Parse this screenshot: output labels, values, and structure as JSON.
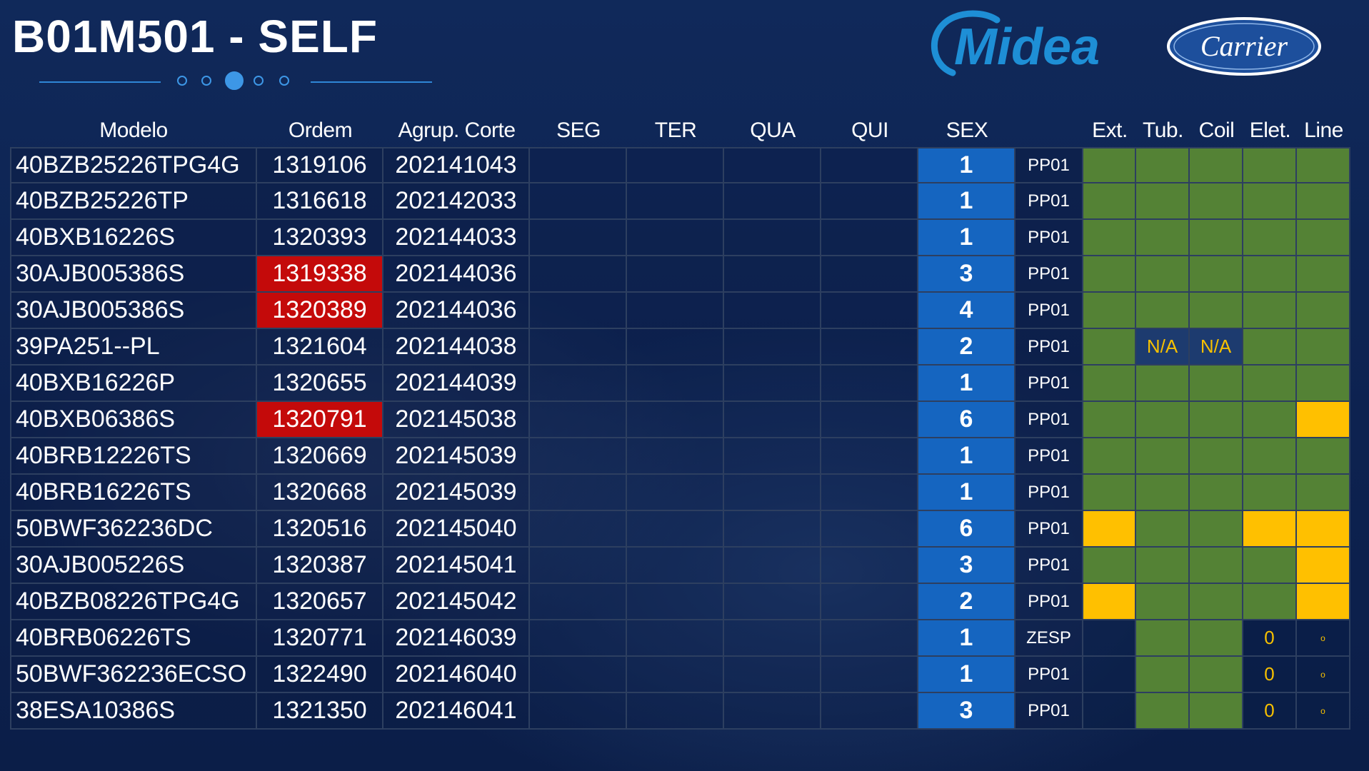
{
  "header": {
    "title": "B01M501 - SELF",
    "pager": {
      "count": 5,
      "active_index": 2
    }
  },
  "logos": {
    "midea": {
      "text": "Midea",
      "color": "#1e8fd6"
    },
    "carrier": {
      "text": "Carrier",
      "color": "#1d4f9c"
    }
  },
  "table": {
    "headers": [
      "Modelo",
      "Ordem",
      "Agrup. Corte",
      "SEG",
      "TER",
      "QUA",
      "QUI",
      "SEX",
      "",
      "Ext.",
      "Tub.",
      "Coil",
      "Elet.",
      "Line"
    ],
    "rows": [
      {
        "modelo": "40BZB25226TPG4G",
        "ordem": "1319106",
        "ordem_flag": "normal",
        "agrup": "202141043",
        "sex": "1",
        "ppo": "PP01",
        "status": [
          {
            "color": "green",
            "text": ""
          },
          {
            "color": "green",
            "text": ""
          },
          {
            "color": "green",
            "text": ""
          },
          {
            "color": "green",
            "text": ""
          },
          {
            "color": "green",
            "text": ""
          }
        ]
      },
      {
        "modelo": "40BZB25226TP",
        "ordem": "1316618",
        "ordem_flag": "normal",
        "agrup": "202142033",
        "sex": "1",
        "ppo": "PP01",
        "status": [
          {
            "color": "green",
            "text": ""
          },
          {
            "color": "green",
            "text": ""
          },
          {
            "color": "green",
            "text": ""
          },
          {
            "color": "green",
            "text": ""
          },
          {
            "color": "green",
            "text": ""
          }
        ]
      },
      {
        "modelo": "40BXB16226S",
        "ordem": "1320393",
        "ordem_flag": "normal",
        "agrup": "202144033",
        "sex": "1",
        "ppo": "PP01",
        "status": [
          {
            "color": "green",
            "text": ""
          },
          {
            "color": "green",
            "text": ""
          },
          {
            "color": "green",
            "text": ""
          },
          {
            "color": "green",
            "text": ""
          },
          {
            "color": "green",
            "text": ""
          }
        ]
      },
      {
        "modelo": "30AJB005386S",
        "ordem": "1319338",
        "ordem_flag": "red",
        "agrup": "202144036",
        "sex": "3",
        "ppo": "PP01",
        "status": [
          {
            "color": "green",
            "text": ""
          },
          {
            "color": "green",
            "text": ""
          },
          {
            "color": "green",
            "text": ""
          },
          {
            "color": "green",
            "text": ""
          },
          {
            "color": "green",
            "text": ""
          }
        ]
      },
      {
        "modelo": "30AJB005386S",
        "ordem": "1320389",
        "ordem_flag": "red",
        "agrup": "202144036",
        "sex": "4",
        "ppo": "PP01",
        "status": [
          {
            "color": "green",
            "text": ""
          },
          {
            "color": "green",
            "text": ""
          },
          {
            "color": "green",
            "text": ""
          },
          {
            "color": "green",
            "text": ""
          },
          {
            "color": "green",
            "text": ""
          }
        ]
      },
      {
        "modelo": "39PA251--PL",
        "ordem": "1321604",
        "ordem_flag": "normal",
        "agrup": "202144038",
        "sex": "2",
        "ppo": "PP01",
        "status": [
          {
            "color": "green",
            "text": ""
          },
          {
            "color": "blue",
            "text": "N/A"
          },
          {
            "color": "blue",
            "text": "N/A"
          },
          {
            "color": "green",
            "text": ""
          },
          {
            "color": "green",
            "text": ""
          }
        ]
      },
      {
        "modelo": "40BXB16226P",
        "ordem": "1320655",
        "ordem_flag": "normal",
        "agrup": "202144039",
        "sex": "1",
        "ppo": "PP01",
        "status": [
          {
            "color": "green",
            "text": ""
          },
          {
            "color": "green",
            "text": ""
          },
          {
            "color": "green",
            "text": ""
          },
          {
            "color": "green",
            "text": ""
          },
          {
            "color": "green",
            "text": ""
          }
        ]
      },
      {
        "modelo": "40BXB06386S",
        "ordem": "1320791",
        "ordem_flag": "red",
        "agrup": "202145038",
        "sex": "6",
        "ppo": "PP01",
        "status": [
          {
            "color": "green",
            "text": ""
          },
          {
            "color": "green",
            "text": ""
          },
          {
            "color": "green",
            "text": ""
          },
          {
            "color": "green",
            "text": ""
          },
          {
            "color": "yellow",
            "text": ""
          }
        ]
      },
      {
        "modelo": "40BRB12226TS",
        "ordem": "1320669",
        "ordem_flag": "normal",
        "agrup": "202145039",
        "sex": "1",
        "ppo": "PP01",
        "status": [
          {
            "color": "green",
            "text": ""
          },
          {
            "color": "green",
            "text": ""
          },
          {
            "color": "green",
            "text": ""
          },
          {
            "color": "green",
            "text": ""
          },
          {
            "color": "green",
            "text": ""
          }
        ]
      },
      {
        "modelo": "40BRB16226TS",
        "ordem": "1320668",
        "ordem_flag": "normal",
        "agrup": "202145039",
        "sex": "1",
        "ppo": "PP01",
        "status": [
          {
            "color": "green",
            "text": ""
          },
          {
            "color": "green",
            "text": ""
          },
          {
            "color": "green",
            "text": ""
          },
          {
            "color": "green",
            "text": ""
          },
          {
            "color": "green",
            "text": ""
          }
        ]
      },
      {
        "modelo": "50BWF362236DC",
        "ordem": "1320516",
        "ordem_flag": "normal",
        "agrup": "202145040",
        "sex": "6",
        "ppo": "PP01",
        "status": [
          {
            "color": "yellow",
            "text": ""
          },
          {
            "color": "green",
            "text": ""
          },
          {
            "color": "green",
            "text": ""
          },
          {
            "color": "yellow",
            "text": ""
          },
          {
            "color": "yellow",
            "text": ""
          }
        ]
      },
      {
        "modelo": "30AJB005226S",
        "ordem": "1320387",
        "ordem_flag": "normal",
        "agrup": "202145041",
        "sex": "3",
        "ppo": "PP01",
        "status": [
          {
            "color": "green",
            "text": ""
          },
          {
            "color": "green",
            "text": ""
          },
          {
            "color": "green",
            "text": ""
          },
          {
            "color": "green",
            "text": ""
          },
          {
            "color": "yellow",
            "text": ""
          }
        ]
      },
      {
        "modelo": "40BZB08226TPG4G",
        "ordem": "1320657",
        "ordem_flag": "normal",
        "agrup": "202145042",
        "sex": "2",
        "ppo": "PP01",
        "status": [
          {
            "color": "yellow",
            "text": ""
          },
          {
            "color": "green",
            "text": ""
          },
          {
            "color": "green",
            "text": ""
          },
          {
            "color": "green",
            "text": ""
          },
          {
            "color": "yellow",
            "text": ""
          }
        ]
      },
      {
        "modelo": "40BRB06226TS",
        "ordem": "1320771",
        "ordem_flag": "normal",
        "agrup": "202146039",
        "sex": "1",
        "ppo": "ZESP",
        "status": [
          {
            "color": "dark",
            "text": ""
          },
          {
            "color": "green",
            "text": ""
          },
          {
            "color": "green",
            "text": ""
          },
          {
            "color": "dark",
            "text": "0"
          },
          {
            "color": "dark",
            "text": "o"
          }
        ]
      },
      {
        "modelo": "50BWF362236ECSO",
        "ordem": "1322490",
        "ordem_flag": "normal",
        "agrup": "202146040",
        "sex": "1",
        "ppo": "PP01",
        "status": [
          {
            "color": "dark",
            "text": ""
          },
          {
            "color": "green",
            "text": ""
          },
          {
            "color": "green",
            "text": ""
          },
          {
            "color": "dark",
            "text": "0"
          },
          {
            "color": "dark",
            "text": "o"
          }
        ]
      },
      {
        "modelo": "38ESA10386S",
        "ordem": "1321350",
        "ordem_flag": "normal",
        "agrup": "202146041",
        "sex": "3",
        "ppo": "PP01",
        "status": [
          {
            "color": "dark",
            "text": ""
          },
          {
            "color": "green",
            "text": ""
          },
          {
            "color": "green",
            "text": ""
          },
          {
            "color": "dark",
            "text": "0"
          },
          {
            "color": "dark",
            "text": "o"
          }
        ]
      }
    ]
  }
}
